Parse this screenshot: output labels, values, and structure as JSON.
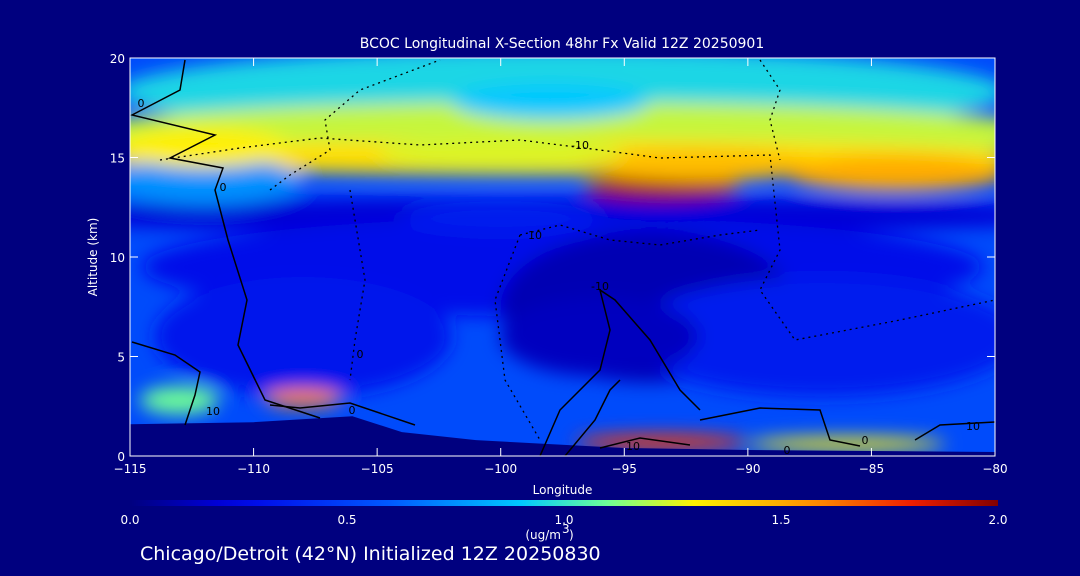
{
  "chart_data": {
    "type": "heatmap",
    "title": "BCOC Longitudinal X-Section 48hr  Fx Valid 12Z 20250901",
    "xlabel": "Longitude",
    "ylabel": "Altitude (km)",
    "xlim": [
      -115,
      -80
    ],
    "ylim": [
      0,
      20
    ],
    "x_ticks": [
      -115,
      -110,
      -105,
      -100,
      -95,
      -90,
      -85,
      -80
    ],
    "x_tick_labels": [
      "−115",
      "−110",
      "−105",
      "−100",
      "−95",
      "−90",
      "−85",
      "−80"
    ],
    "y_ticks": [
      0,
      5,
      10,
      15,
      20
    ],
    "y_tick_labels": [
      "0",
      "5",
      "10",
      "15",
      "20"
    ],
    "colorbar": {
      "min": 0.0,
      "max": 2.0,
      "tick_labels": [
        "0.0",
        "0.5",
        "1.0",
        "1.5",
        "2.0"
      ],
      "units_line1": "(ug/m",
      "units_sup": "3",
      "units_line2": ")"
    },
    "caption": "Chicago/Detroit (42°N) Initialized 12Z 20250830",
    "terrain_top_km": [
      [
        -115,
        1.6
      ],
      [
        -110,
        1.7
      ],
      [
        -106,
        2.0
      ],
      [
        -104,
        1.2
      ],
      [
        -101,
        0.8
      ],
      [
        -98,
        0.6
      ],
      [
        -95,
        0.4
      ],
      [
        -90,
        0.3
      ],
      [
        -85,
        0.25
      ],
      [
        -80,
        0.2
      ]
    ],
    "concentration_features": [
      {
        "lon": -93.5,
        "alt_km": 13.5,
        "value": 1.95
      },
      {
        "lon": -92,
        "alt_km": 14.6,
        "value": 1.45
      },
      {
        "lon": -84,
        "alt_km": 14.2,
        "value": 1.5
      },
      {
        "lon": -112,
        "alt_km": 15.5,
        "value": 1.3
      },
      {
        "lon": -100,
        "alt_km": 15.2,
        "value": 1.25
      },
      {
        "lon": -98,
        "alt_km": 17.8,
        "value": 0.9
      },
      {
        "lon": -108,
        "alt_km": 2.9,
        "value": 1.6
      },
      {
        "lon": -113,
        "alt_km": 2.8,
        "value": 1.1
      },
      {
        "lon": -93.5,
        "alt_km": 0.7,
        "value": 1.75
      },
      {
        "lon": -86,
        "alt_km": 0.6,
        "value": 1.3
      },
      {
        "lon": -100,
        "alt_km": 12,
        "value": 0.35
      },
      {
        "lon": -96,
        "alt_km": 6,
        "value": 0.15
      }
    ],
    "contour_labels": [
      "0",
      "0",
      "0",
      "0",
      "0",
      "0",
      "10",
      "10",
      "10",
      "10",
      "-10",
      "-10"
    ]
  }
}
